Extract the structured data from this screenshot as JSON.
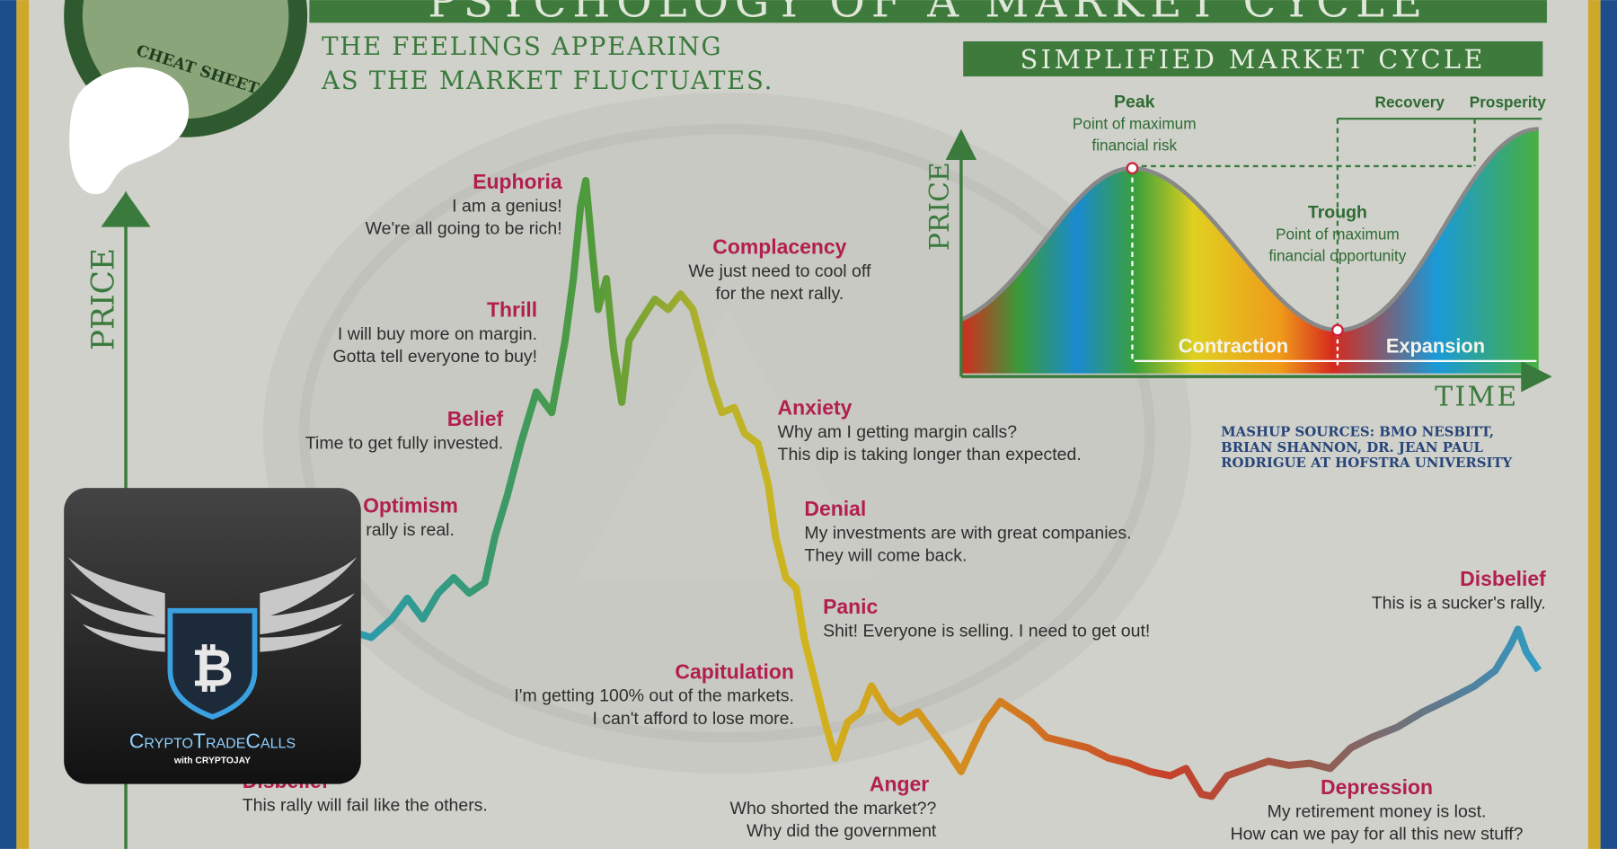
{
  "header": {
    "title": "PSYCHOLOGY OF A MARKET CYCLE",
    "subtitle_lines": [
      "THE FEELINGS APPEARING",
      "AS THE MARKET FLUCTUATES."
    ],
    "badge": "CHEAT SHEET"
  },
  "main_chart": {
    "y_axis_label": "PRICE",
    "stages": [
      {
        "name": "Euphoria",
        "lines": [
          "I am a genius!",
          "We're all going to be rich!"
        ]
      },
      {
        "name": "Complacency",
        "lines": [
          "We just need to cool off",
          "for the next rally."
        ]
      },
      {
        "name": "Thrill",
        "lines": [
          "I will buy more on margin.",
          "Gotta tell everyone to buy!"
        ]
      },
      {
        "name": "Belief",
        "lines": [
          "Time to get fully invested."
        ]
      },
      {
        "name": "Anxiety",
        "lines": [
          "Why am I getting margin calls?",
          "This dip is taking longer than expected."
        ]
      },
      {
        "name": "Optimism",
        "lines": [
          "This rally is real."
        ]
      },
      {
        "name": "Denial",
        "lines": [
          "My investments are with great companies.",
          "They will come back."
        ]
      },
      {
        "name": "Panic",
        "lines": [
          "Shit! Everyone is selling. I need to get out!"
        ]
      },
      {
        "name": "Disbelief",
        "lines": [
          "This is a sucker's rally."
        ]
      },
      {
        "name": "Capitulation",
        "lines": [
          "I'm getting 100% out of the markets.",
          "I can't afford to lose more."
        ]
      },
      {
        "name": "Disbelief",
        "lines": [
          "This rally will fail like the others."
        ]
      },
      {
        "name": "Anger",
        "lines": [
          "Who shorted the market??",
          "Why did the government"
        ]
      },
      {
        "name": "Depression",
        "lines": [
          "My retirement money is lost.",
          "How can we pay for all this new stuff?"
        ]
      }
    ]
  },
  "inset": {
    "title": "SIMPLIFIED MARKET CYCLE",
    "y_axis_label": "PRICE",
    "x_axis_label": "TIME",
    "peak": {
      "title": "Peak",
      "lines": [
        "Point of maximum",
        "financial risk"
      ]
    },
    "trough": {
      "title": "Trough",
      "lines": [
        "Point of maximum",
        "financial opportunity"
      ]
    },
    "phases": [
      "Contraction",
      "Expansion"
    ],
    "recovery": "Recovery",
    "prosperity": "Prosperity"
  },
  "sources": [
    "MASHUP SOURCES: BMO NESBITT,",
    "BRIAN SHANNON, DR. JEAN PAUL",
    "RODRIGUE AT HOFSTRA UNIVERSITY"
  ],
  "logo": {
    "name": "CryptoTradeCalls",
    "tagline": "with CRYPTOJAY"
  }
}
